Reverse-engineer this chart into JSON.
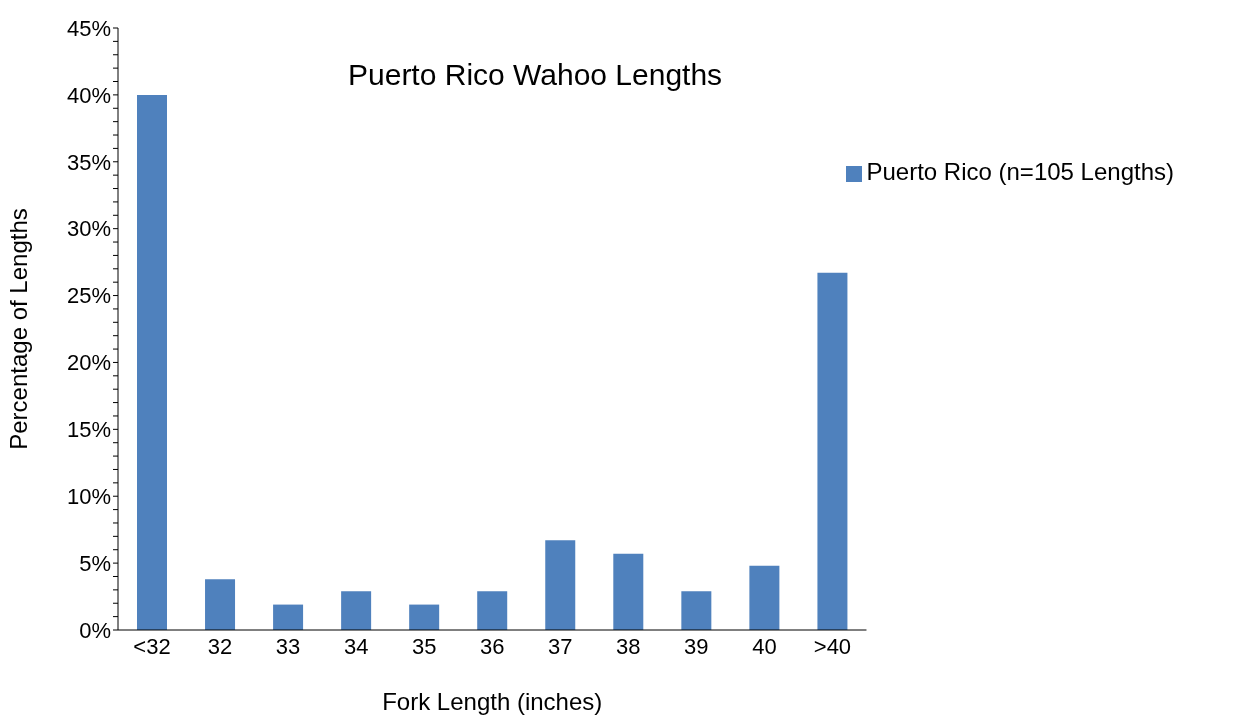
{
  "chart_data": {
    "type": "bar",
    "title": "Puerto Rico Wahoo Lengths",
    "xlabel": "Fork Length (inches)",
    "ylabel": "Percentage of Lengths",
    "categories": [
      "<32",
      "32",
      "33",
      "34",
      "35",
      "36",
      "37",
      "38",
      "39",
      "40",
      ">40"
    ],
    "series": [
      {
        "name": "Puerto Rico (n=105 Lengths)",
        "color": "#4f81bd",
        "values": [
          40,
          3.8,
          1.9,
          2.9,
          1.9,
          2.9,
          6.7,
          5.7,
          2.9,
          4.8,
          26.7
        ]
      }
    ],
    "ylim": [
      0,
      45
    ],
    "yticks": [
      {
        "value": 0,
        "label": "0%"
      },
      {
        "value": 1,
        "label": null
      },
      {
        "value": 2,
        "label": null
      },
      {
        "value": 3,
        "label": null
      },
      {
        "value": 4,
        "label": null
      },
      {
        "value": 5,
        "label": "5%"
      },
      {
        "value": 6,
        "label": null
      },
      {
        "value": 7,
        "label": null
      },
      {
        "value": 8,
        "label": null
      },
      {
        "value": 9,
        "label": null
      },
      {
        "value": 10,
        "label": "10%"
      },
      {
        "value": 11,
        "label": null
      },
      {
        "value": 12,
        "label": null
      },
      {
        "value": 13,
        "label": null
      },
      {
        "value": 14,
        "label": null
      },
      {
        "value": 15,
        "label": "15%"
      },
      {
        "value": 16,
        "label": null
      },
      {
        "value": 17,
        "label": null
      },
      {
        "value": 18,
        "label": null
      },
      {
        "value": 19,
        "label": null
      },
      {
        "value": 20,
        "label": "20%"
      },
      {
        "value": 21,
        "label": null
      },
      {
        "value": 22,
        "label": null
      },
      {
        "value": 23,
        "label": null
      },
      {
        "value": 24,
        "label": null
      },
      {
        "value": 25,
        "label": "25%"
      },
      {
        "value": 26,
        "label": null
      },
      {
        "value": 27,
        "label": null
      },
      {
        "value": 28,
        "label": null
      },
      {
        "value": 29,
        "label": null
      },
      {
        "value": 30,
        "label": "30%"
      },
      {
        "value": 31,
        "label": null
      },
      {
        "value": 32,
        "label": null
      },
      {
        "value": 33,
        "label": null
      },
      {
        "value": 34,
        "label": null
      },
      {
        "value": 35,
        "label": "35%"
      },
      {
        "value": 36,
        "label": null
      },
      {
        "value": 37,
        "label": null
      },
      {
        "value": 38,
        "label": null
      },
      {
        "value": 39,
        "label": null
      },
      {
        "value": 40,
        "label": "40%"
      },
      {
        "value": 41,
        "label": null
      },
      {
        "value": 42,
        "label": null
      },
      {
        "value": 43,
        "label": null
      },
      {
        "value": 44,
        "label": null
      },
      {
        "value": 45,
        "label": "45%"
      }
    ],
    "grid": false,
    "legend": "top right"
  }
}
